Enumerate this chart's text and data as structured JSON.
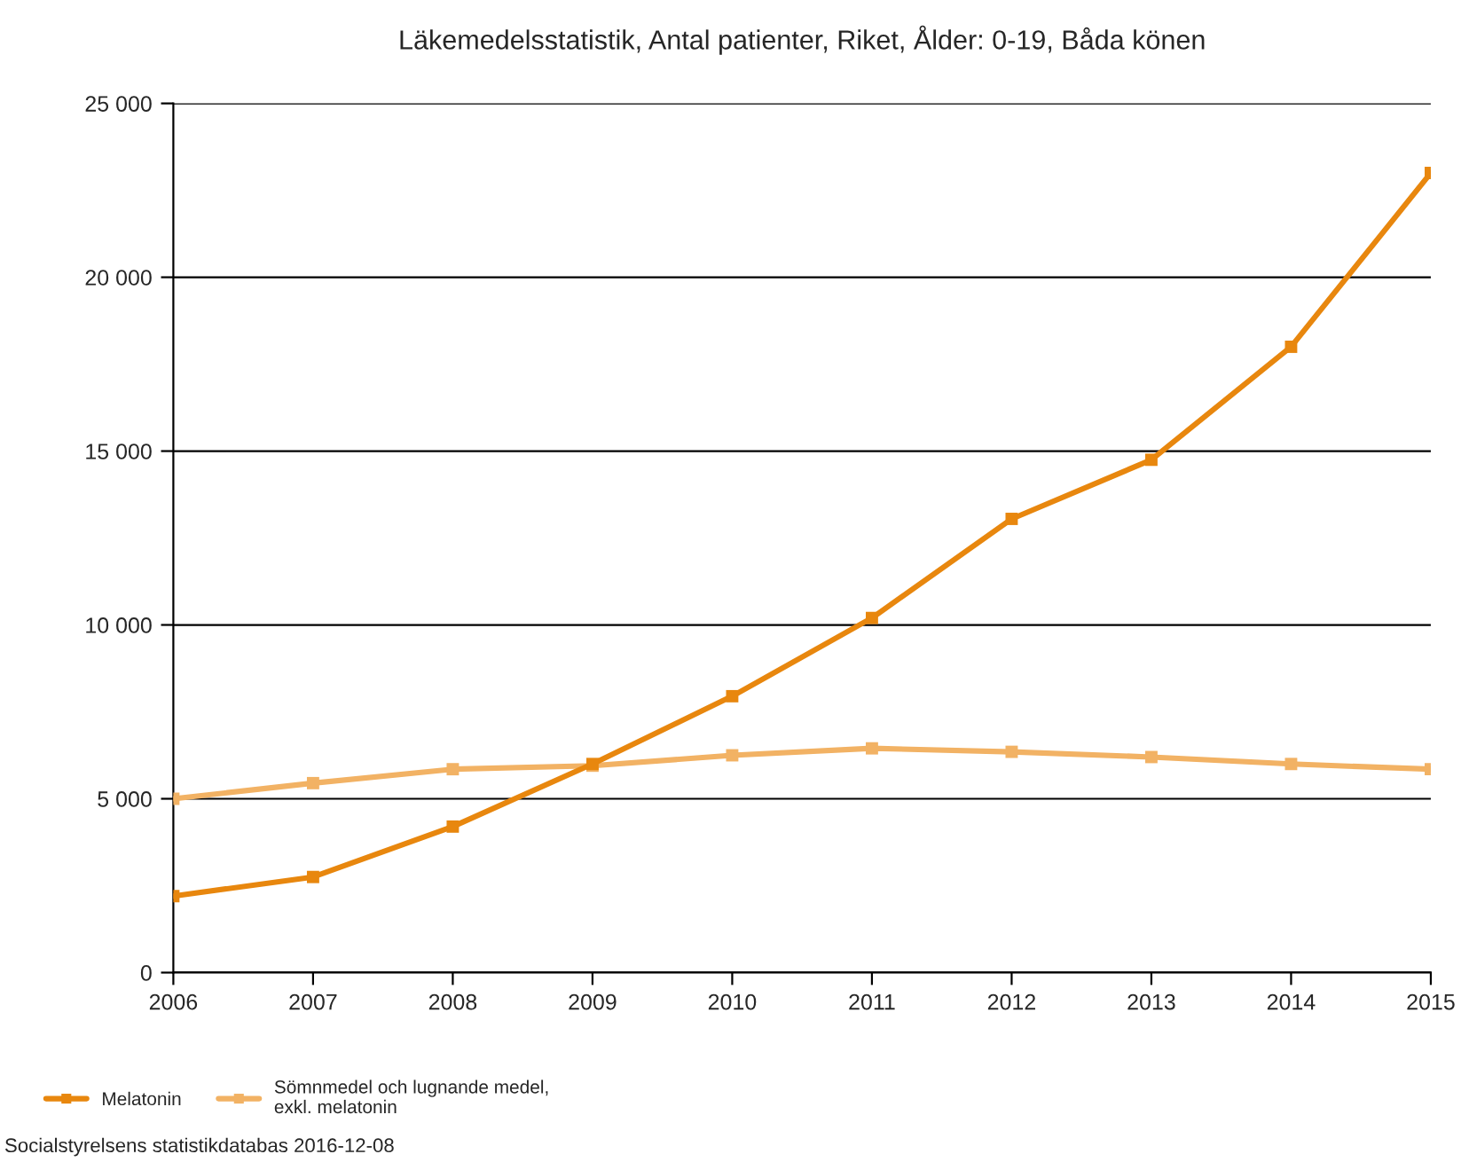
{
  "chart_data": {
    "type": "line",
    "title": "Läkemedelsstatistik, Antal patienter, Riket, Ålder: 0-19, Båda könen",
    "x": [
      2006,
      2007,
      2008,
      2009,
      2010,
      2011,
      2012,
      2013,
      2014,
      2015
    ],
    "series": [
      {
        "name": "Melatonin",
        "color": "#e8870e",
        "values": [
          2200,
          2750,
          4200,
          6000,
          7950,
          10200,
          13050,
          14750,
          18000,
          23000
        ]
      },
      {
        "name": "Sömnmedel och lugnande medel,\nexkl. melatonin",
        "color": "#f2b264",
        "values": [
          5000,
          5450,
          5850,
          5950,
          6250,
          6450,
          6350,
          6200,
          6000,
          5850
        ]
      }
    ],
    "xlim": [
      2006,
      2015
    ],
    "xticks": [
      2006,
      2007,
      2008,
      2009,
      2010,
      2011,
      2012,
      2013,
      2014,
      2015
    ],
    "ylim": [
      0,
      25000
    ],
    "yticks": [
      {
        "value": 0,
        "label": "0"
      },
      {
        "value": 5000,
        "label": "5 000"
      },
      {
        "value": 10000,
        "label": "10 000"
      },
      {
        "value": 15000,
        "label": "15 000"
      },
      {
        "value": 20000,
        "label": "20 000"
      },
      {
        "value": 25000,
        "label": "25 000"
      }
    ],
    "grid": "y",
    "legend": "bottom left",
    "marker": "square",
    "line_style": "solid",
    "annotations": [
      "Socialstyrelsens statistikdatabas 2016-12-08"
    ]
  }
}
